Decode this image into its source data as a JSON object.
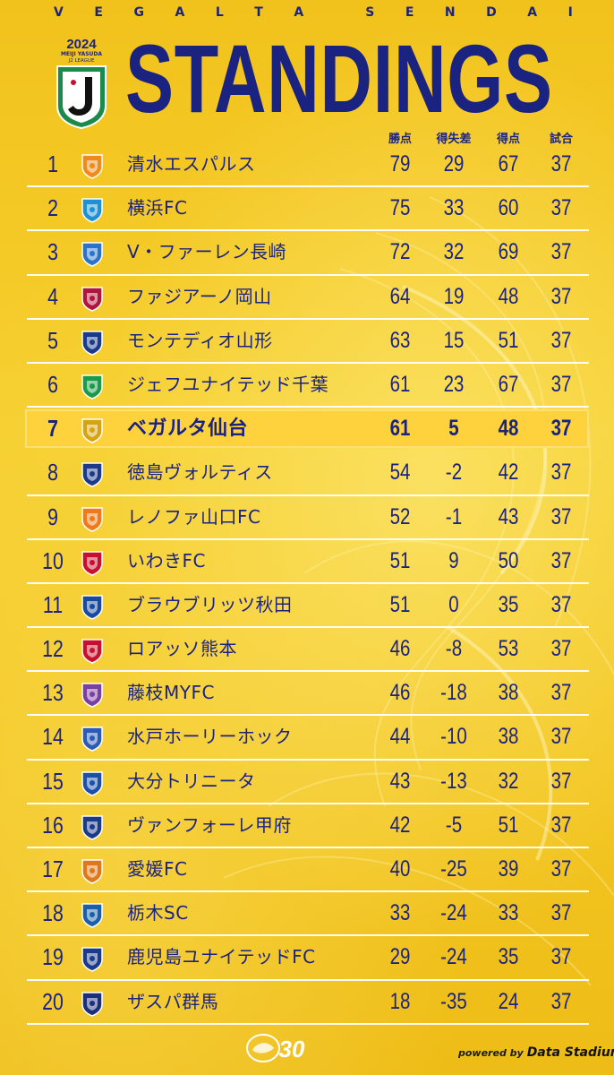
{
  "header": {
    "club_letters": [
      "V",
      "E",
      "G",
      "A",
      "L",
      "T",
      "A",
      "",
      "S",
      "E",
      "N",
      "D",
      "A",
      "I"
    ],
    "title": "STANDINGS",
    "league_logo": {
      "year": "2024",
      "sponsor": "MEIJI YASUDA",
      "league": "J2 LEAGUE"
    }
  },
  "columns": {
    "points": "勝点",
    "goal_diff": "得失差",
    "goals_for": "得点",
    "matches": "試合"
  },
  "standings": [
    {
      "rank": "1",
      "team": "清水エスパルス",
      "pts": "79",
      "gd": "29",
      "gf": "67",
      "mp": "37",
      "crest_color": "#f08a1a"
    },
    {
      "rank": "2",
      "team": "横浜FC",
      "pts": "75",
      "gd": "33",
      "gf": "60",
      "mp": "37",
      "crest_color": "#1e90d6"
    },
    {
      "rank": "3",
      "team": "V・ファーレン長崎",
      "pts": "72",
      "gd": "32",
      "gf": "69",
      "mp": "37",
      "crest_color": "#2b73c9"
    },
    {
      "rank": "4",
      "team": "ファジアーノ岡山",
      "pts": "64",
      "gd": "19",
      "gf": "48",
      "mp": "37",
      "crest_color": "#b0153d"
    },
    {
      "rank": "5",
      "team": "モンテディオ山形",
      "pts": "63",
      "gd": "15",
      "gf": "51",
      "mp": "37",
      "crest_color": "#1c3a8a"
    },
    {
      "rank": "6",
      "team": "ジェフユナイテッド千葉",
      "pts": "61",
      "gd": "23",
      "gf": "67",
      "mp": "37",
      "crest_color": "#1b9a4a"
    },
    {
      "rank": "7",
      "team": "ベガルタ仙台",
      "pts": "61",
      "gd": "5",
      "gf": "48",
      "mp": "37",
      "crest_color": "#d6a412",
      "highlight": true
    },
    {
      "rank": "8",
      "team": "徳島ヴォルティス",
      "pts": "54",
      "gd": "-2",
      "gf": "42",
      "mp": "37",
      "crest_color": "#1c3a8a"
    },
    {
      "rank": "9",
      "team": "レノファ山口FC",
      "pts": "52",
      "gd": "-1",
      "gf": "43",
      "mp": "37",
      "crest_color": "#f07a1a"
    },
    {
      "rank": "10",
      "team": "いわきFC",
      "pts": "51",
      "gd": "9",
      "gf": "50",
      "mp": "37",
      "crest_color": "#c8102e"
    },
    {
      "rank": "11",
      "team": "ブラウブリッツ秋田",
      "pts": "51",
      "gd": "0",
      "gf": "35",
      "mp": "37",
      "crest_color": "#1a4aa0"
    },
    {
      "rank": "12",
      "team": "ロアッソ熊本",
      "pts": "46",
      "gd": "-8",
      "gf": "53",
      "mp": "37",
      "crest_color": "#c8102e"
    },
    {
      "rank": "13",
      "team": "藤枝MYFC",
      "pts": "46",
      "gd": "-18",
      "gf": "38",
      "mp": "37",
      "crest_color": "#7a3fa0"
    },
    {
      "rank": "14",
      "team": "水戸ホーリーホック",
      "pts": "44",
      "gd": "-10",
      "gf": "38",
      "mp": "37",
      "crest_color": "#2a5bb5"
    },
    {
      "rank": "15",
      "team": "大分トリニータ",
      "pts": "43",
      "gd": "-13",
      "gf": "32",
      "mp": "37",
      "crest_color": "#1c4fa8"
    },
    {
      "rank": "16",
      "team": "ヴァンフォーレ甲府",
      "pts": "42",
      "gd": "-5",
      "gf": "51",
      "mp": "37",
      "crest_color": "#1c3a8a"
    },
    {
      "rank": "17",
      "team": "愛媛FC",
      "pts": "40",
      "gd": "-25",
      "gf": "39",
      "mp": "37",
      "crest_color": "#e0781a"
    },
    {
      "rank": "18",
      "team": "栃木SC",
      "pts": "33",
      "gd": "-24",
      "gf": "33",
      "mp": "37",
      "crest_color": "#1a5fa8"
    },
    {
      "rank": "19",
      "team": "鹿児島ユナイテッドFC",
      "pts": "29",
      "gd": "-24",
      "gf": "35",
      "mp": "37",
      "crest_color": "#1c3a8a"
    },
    {
      "rank": "20",
      "team": "ザスパ群馬",
      "pts": "18",
      "gd": "-35",
      "gf": "24",
      "mp": "37",
      "crest_color": "#1c2f7a"
    }
  ],
  "footer": {
    "anniversary_mark": "30",
    "powered_by": "powered by",
    "data_brand": "Data Stadium"
  },
  "colors": {
    "navy": "#1b2380",
    "background": "#f4c624",
    "highlight_row": "#fdd23c",
    "league_green": "#1b8a4a"
  }
}
